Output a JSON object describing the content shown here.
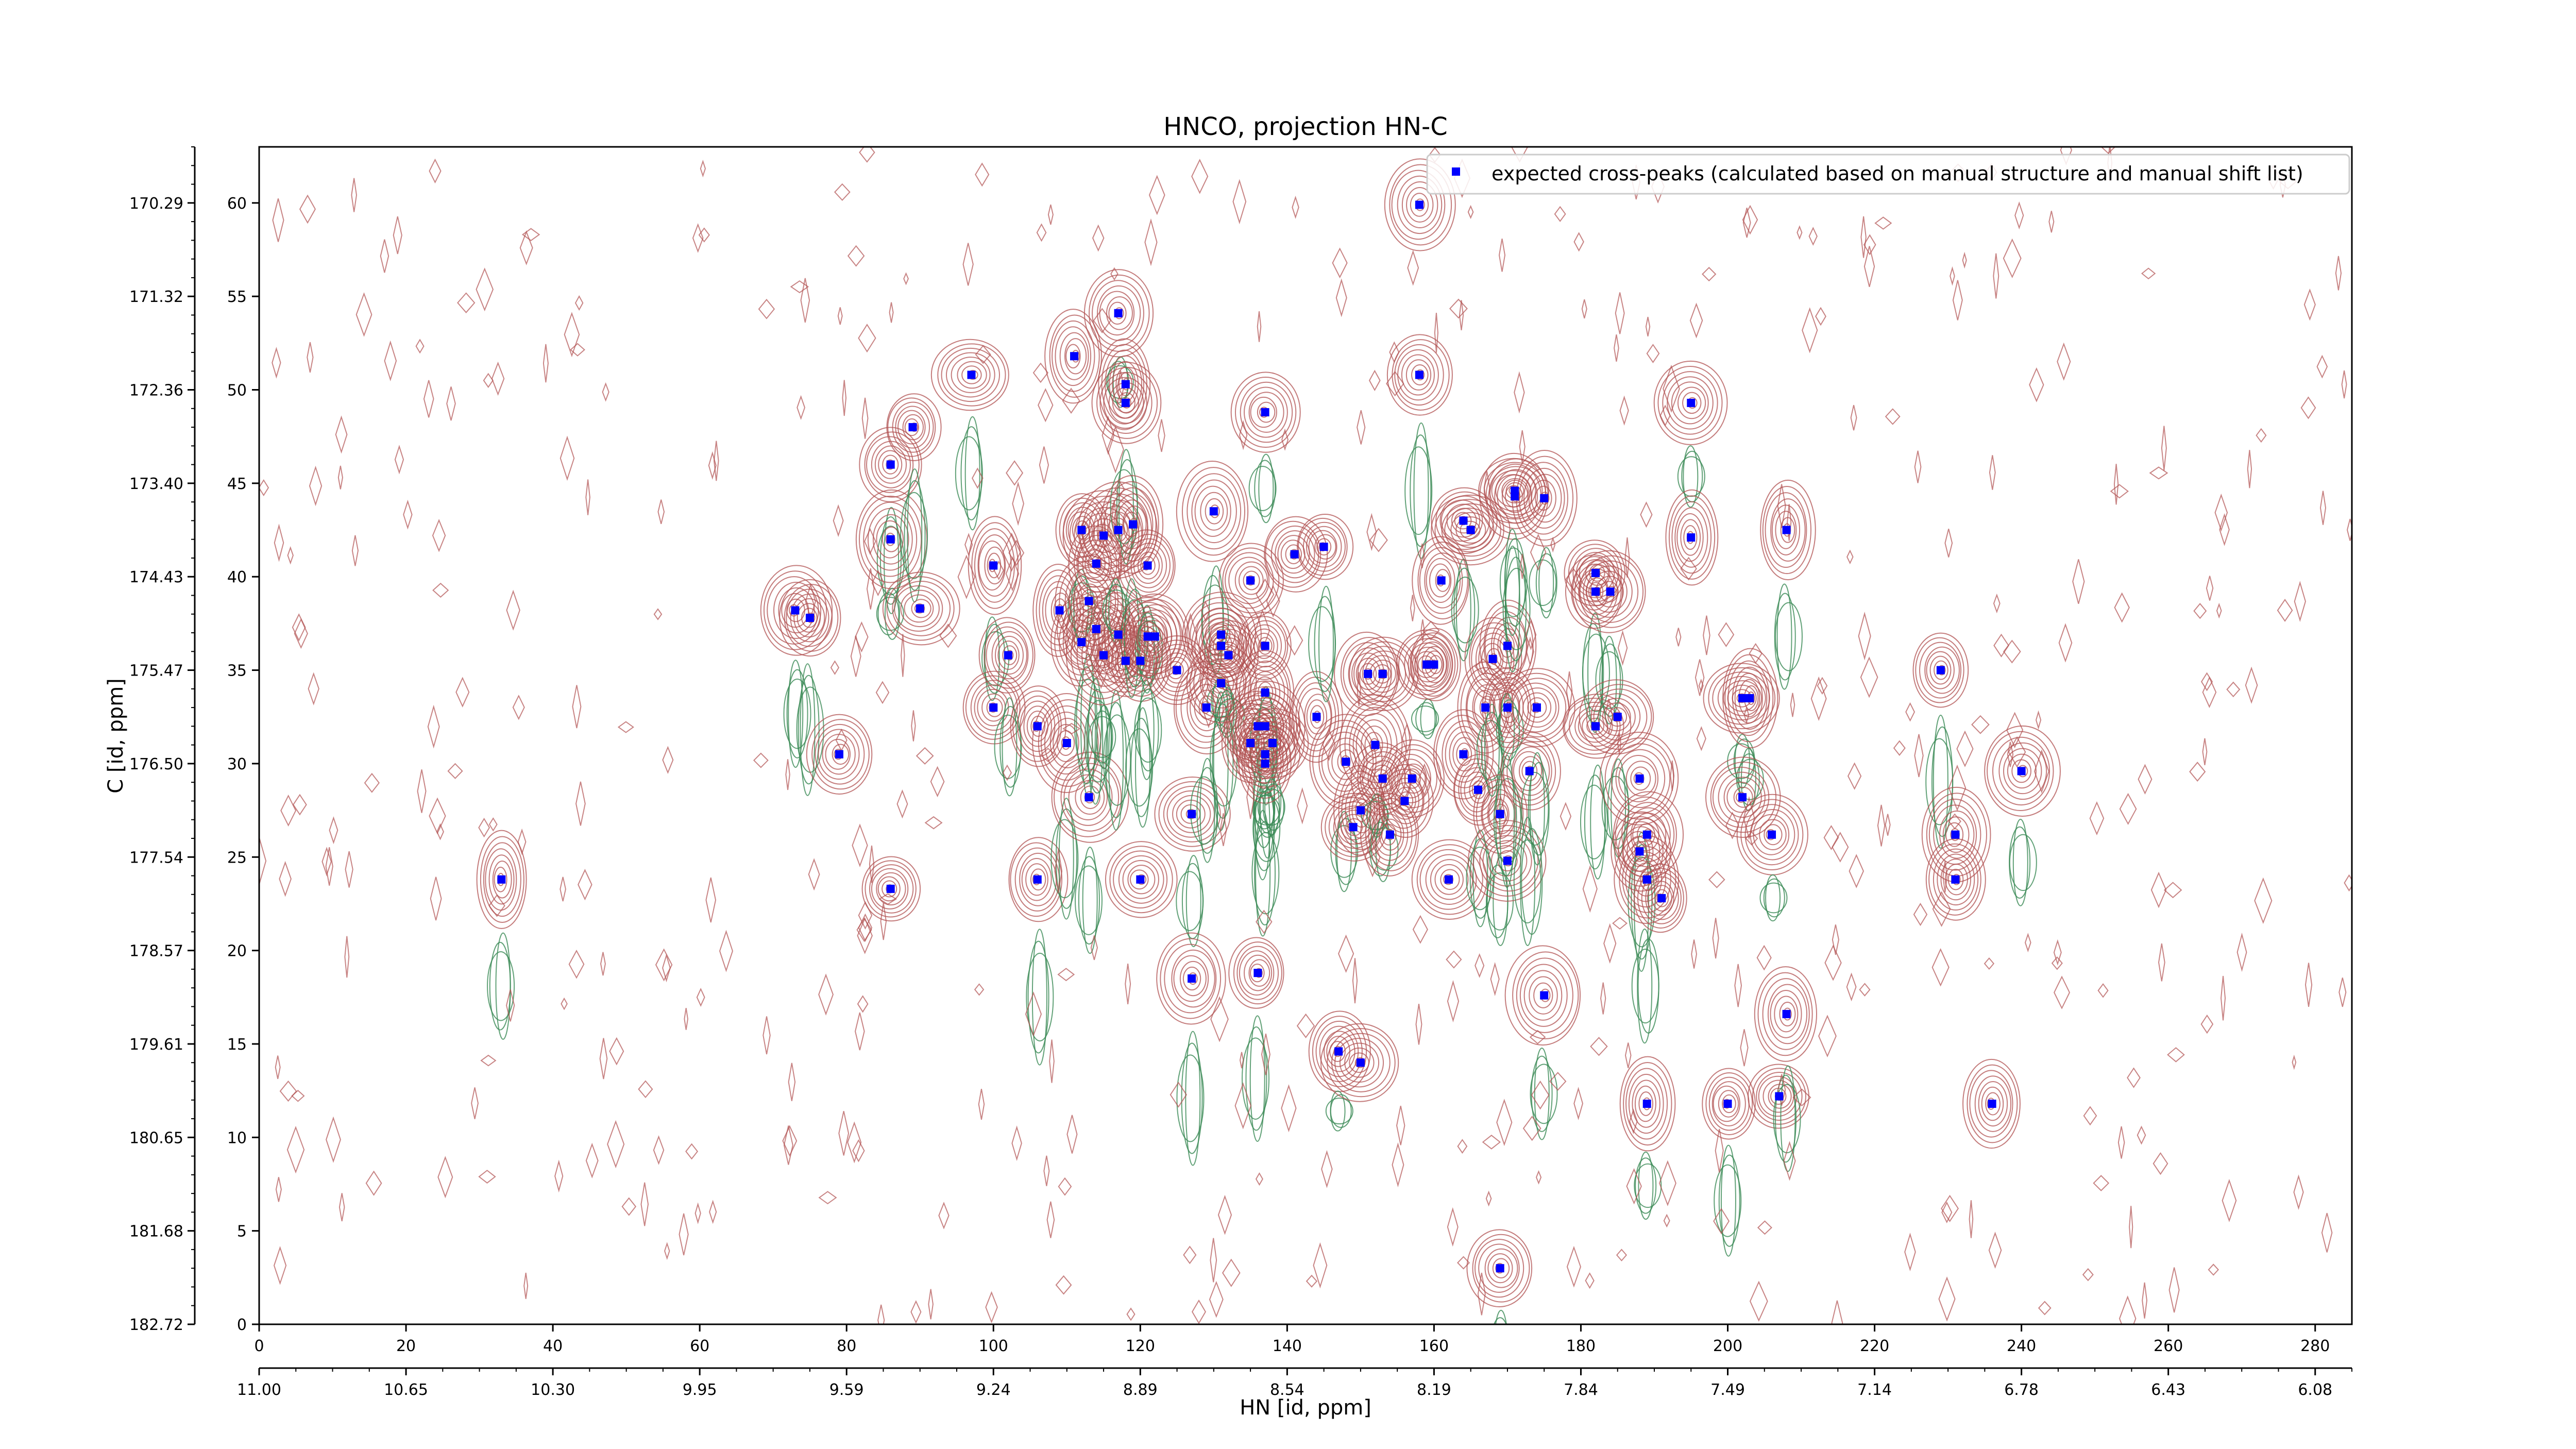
{
  "chart_data": {
    "type": "scatter",
    "title": "HNCO, projection HN-C",
    "xlabel": "HN [id, ppm]",
    "ylabel": "C [id, ppm]",
    "xlim": [
      0,
      285
    ],
    "ylim": [
      0,
      63
    ],
    "grid": false,
    "legend_position": "top-right",
    "x_ticks": [
      0,
      20,
      40,
      60,
      80,
      100,
      120,
      140,
      160,
      180,
      200,
      220,
      240,
      260,
      280
    ],
    "y_ticks": [
      0,
      5,
      10,
      15,
      20,
      25,
      30,
      35,
      40,
      45,
      50,
      55,
      60
    ],
    "x_ticks_secondary": [
      {
        "pos": 0,
        "label": "11.00"
      },
      {
        "pos": 20,
        "label": "10.65"
      },
      {
        "pos": 40,
        "label": "10.30"
      },
      {
        "pos": 60,
        "label": "9.95"
      },
      {
        "pos": 80,
        "label": "9.59"
      },
      {
        "pos": 100,
        "label": "9.24"
      },
      {
        "pos": 120,
        "label": "8.89"
      },
      {
        "pos": 140,
        "label": "8.54"
      },
      {
        "pos": 160,
        "label": "8.19"
      },
      {
        "pos": 180,
        "label": "7.84"
      },
      {
        "pos": 200,
        "label": "7.49"
      },
      {
        "pos": 220,
        "label": "7.14"
      },
      {
        "pos": 240,
        "label": "6.78"
      },
      {
        "pos": 260,
        "label": "6.43"
      },
      {
        "pos": 280,
        "label": "6.08"
      }
    ],
    "y_ticks_secondary": [
      {
        "pos": 60,
        "label": "170.29"
      },
      {
        "pos": 55,
        "label": "171.32"
      },
      {
        "pos": 50,
        "label": "172.36"
      },
      {
        "pos": 45,
        "label": "173.40"
      },
      {
        "pos": 40,
        "label": "174.43"
      },
      {
        "pos": 35,
        "label": "175.47"
      },
      {
        "pos": 30,
        "label": "176.50"
      },
      {
        "pos": 25,
        "label": "177.54"
      },
      {
        "pos": 20,
        "label": "178.57"
      },
      {
        "pos": 15,
        "label": "179.61"
      },
      {
        "pos": 10,
        "label": "180.65"
      },
      {
        "pos": 5,
        "label": "181.68"
      },
      {
        "pos": 0,
        "label": "182.72"
      }
    ],
    "series": [
      {
        "name": "expected cross-peaks (calculated based on manual structure and manual shift list)",
        "color": "#0000ff",
        "points": [
          [
            33,
            23.8
          ],
          [
            73,
            38.2
          ],
          [
            75,
            37.8
          ],
          [
            79,
            30.5
          ],
          [
            86,
            46
          ],
          [
            86,
            42
          ],
          [
            89,
            48
          ],
          [
            86,
            23.3
          ],
          [
            90,
            38.3
          ],
          [
            97,
            50.8
          ],
          [
            100,
            40.6
          ],
          [
            100,
            33
          ],
          [
            102,
            35.8
          ],
          [
            106,
            32
          ],
          [
            106,
            23.8
          ],
          [
            109,
            38.2
          ],
          [
            110,
            31.1
          ],
          [
            111,
            51.8
          ],
          [
            112,
            36.5
          ],
          [
            112,
            42.5
          ],
          [
            113,
            38.7
          ],
          [
            113,
            28.2
          ],
          [
            114,
            37.2
          ],
          [
            114,
            40.7
          ],
          [
            115,
            42.2
          ],
          [
            115,
            35.8
          ],
          [
            117,
            54.1
          ],
          [
            117,
            36.9
          ],
          [
            117,
            42.5
          ],
          [
            118,
            49.3
          ],
          [
            118,
            50.3
          ],
          [
            118,
            35.5
          ],
          [
            119,
            42.8
          ],
          [
            120,
            35.5
          ],
          [
            120,
            23.8
          ],
          [
            121,
            40.6
          ],
          [
            121,
            36.8
          ],
          [
            122,
            36.8
          ],
          [
            125,
            35
          ],
          [
            127,
            27.3
          ],
          [
            127,
            18.5
          ],
          [
            129,
            33
          ],
          [
            130,
            43.5
          ],
          [
            131,
            36.9
          ],
          [
            131,
            36.3
          ],
          [
            131,
            34.3
          ],
          [
            132,
            35.8
          ],
          [
            135,
            39.8
          ],
          [
            135,
            31.1
          ],
          [
            136,
            32
          ],
          [
            136,
            18.8
          ],
          [
            137,
            48.8
          ],
          [
            137,
            36.3
          ],
          [
            137,
            33.8
          ],
          [
            137,
            32
          ],
          [
            137,
            30.5
          ],
          [
            137,
            30
          ],
          [
            138,
            31.1
          ],
          [
            141,
            41.2
          ],
          [
            144,
            32.5
          ],
          [
            145,
            41.6
          ],
          [
            147,
            14.6
          ],
          [
            148,
            30.1
          ],
          [
            149,
            26.6
          ],
          [
            150,
            14
          ],
          [
            150,
            27.5
          ],
          [
            151,
            34.8
          ],
          [
            152,
            31
          ],
          [
            153,
            29.2
          ],
          [
            153,
            34.8
          ],
          [
            154,
            26.2
          ],
          [
            156,
            28
          ],
          [
            157,
            29.2
          ],
          [
            158,
            50.8
          ],
          [
            158,
            59.9
          ],
          [
            159,
            35.3
          ],
          [
            160,
            35.3
          ],
          [
            161,
            39.8
          ],
          [
            162,
            23.8
          ],
          [
            164,
            43
          ],
          [
            164,
            30.5
          ],
          [
            165,
            42.5
          ],
          [
            166,
            28.6
          ],
          [
            167,
            33
          ],
          [
            168,
            35.6
          ],
          [
            169,
            3
          ],
          [
            169,
            27.3
          ],
          [
            170,
            24.8
          ],
          [
            170,
            33
          ],
          [
            170,
            36.3
          ],
          [
            171,
            44.3
          ],
          [
            171,
            44.6
          ],
          [
            173,
            29.6
          ],
          [
            174,
            33
          ],
          [
            175,
            44.2
          ],
          [
            175,
            17.6
          ],
          [
            182,
            32
          ],
          [
            182,
            40.2
          ],
          [
            182,
            39.2
          ],
          [
            184,
            39.2
          ],
          [
            185,
            32.5
          ],
          [
            188,
            29.2
          ],
          [
            188,
            25.3
          ],
          [
            189,
            26.2
          ],
          [
            189,
            23.8
          ],
          [
            189,
            11.8
          ],
          [
            191,
            22.8
          ],
          [
            195,
            49.3
          ],
          [
            195,
            42.1
          ],
          [
            200,
            11.8
          ],
          [
            202,
            33.5
          ],
          [
            203,
            33.5
          ],
          [
            202,
            28.2
          ],
          [
            206,
            26.2
          ],
          [
            208,
            42.5
          ],
          [
            207,
            12.2
          ],
          [
            208,
            16.6
          ],
          [
            229,
            35
          ],
          [
            231,
            26.2
          ],
          [
            231,
            23.8
          ],
          [
            236,
            11.8
          ],
          [
            240,
            29.6
          ]
        ]
      }
    ]
  }
}
